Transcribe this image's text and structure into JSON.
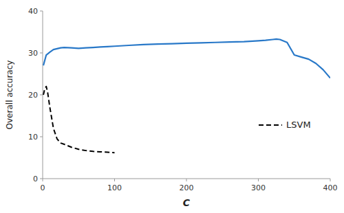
{
  "chart_data": {
    "type": "line",
    "xlabel": "C",
    "ylabel": "Overall accuracy",
    "xlim": [
      0,
      400
    ],
    "ylim": [
      0,
      40
    ],
    "xticks": [
      0,
      100,
      200,
      300,
      400
    ],
    "yticks": [
      0,
      10,
      20,
      30,
      40
    ],
    "grid": false,
    "legend": "right",
    "series": [
      {
        "color": "#2878c8",
        "line_style": "solid",
        "x": [
          1,
          5,
          10,
          15,
          20,
          25,
          30,
          40,
          50,
          60,
          70,
          80,
          90,
          100,
          120,
          140,
          160,
          180,
          200,
          220,
          240,
          260,
          280,
          300,
          310,
          320,
          325,
          330,
          340,
          350,
          360,
          370,
          380,
          390,
          400
        ],
        "values": [
          27.0,
          29.5,
          30.2,
          30.8,
          31.0,
          31.2,
          31.3,
          31.2,
          31.1,
          31.2,
          31.3,
          31.4,
          31.5,
          31.6,
          31.8,
          32.0,
          32.1,
          32.2,
          32.3,
          32.4,
          32.5,
          32.6,
          32.7,
          32.9,
          33.0,
          33.2,
          33.3,
          33.2,
          32.5,
          29.5,
          29.0,
          28.5,
          27.5,
          26.0,
          24.0
        ]
      },
      {
        "name": "LSVM",
        "color": "#000000",
        "line_style": "dashed",
        "x": [
          1,
          3,
          5,
          7,
          10,
          15,
          20,
          25,
          30,
          40,
          50,
          60,
          70,
          80,
          90,
          100
        ],
        "values": [
          20.0,
          21.5,
          22.0,
          20.5,
          17.0,
          12.0,
          9.5,
          8.5,
          8.2,
          7.5,
          7.0,
          6.7,
          6.5,
          6.4,
          6.3,
          6.2
        ]
      }
    ]
  }
}
